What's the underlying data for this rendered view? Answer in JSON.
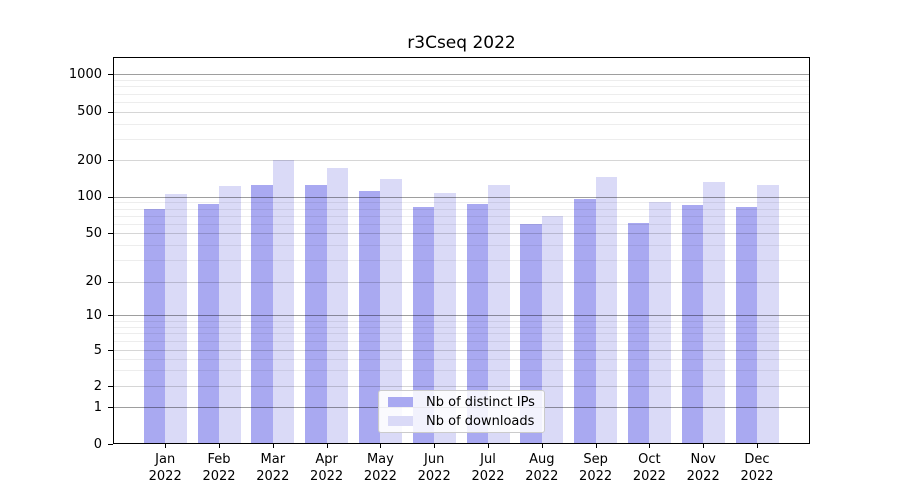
{
  "chart_data": {
    "type": "bar",
    "title": "r3Cseq 2022",
    "year_label": "2022",
    "categories": [
      "Jan",
      "Feb",
      "Mar",
      "Apr",
      "May",
      "Jun",
      "Jul",
      "Aug",
      "Sep",
      "Oct",
      "Nov",
      "Dec"
    ],
    "series": [
      {
        "name": "Nb of distinct IPs",
        "color": "#a9a9f1",
        "values": [
          79,
          88,
          126,
          125,
          112,
          82,
          87,
          60,
          95,
          61,
          86,
          83
        ]
      },
      {
        "name": "Nb of downloads",
        "color": "#dadaf7",
        "values": [
          105,
          123,
          200,
          173,
          140,
          107,
          126,
          70,
          146,
          90,
          131,
          126
        ]
      }
    ],
    "y_ticks": [
      0,
      1,
      2,
      5,
      10,
      20,
      50,
      100,
      200,
      500,
      1000
    ],
    "y_scale": "symlog",
    "ylim": [
      0,
      1200
    ],
    "grid": "on",
    "legend_position": "lower center",
    "xlabel": "",
    "ylabel": ""
  }
}
